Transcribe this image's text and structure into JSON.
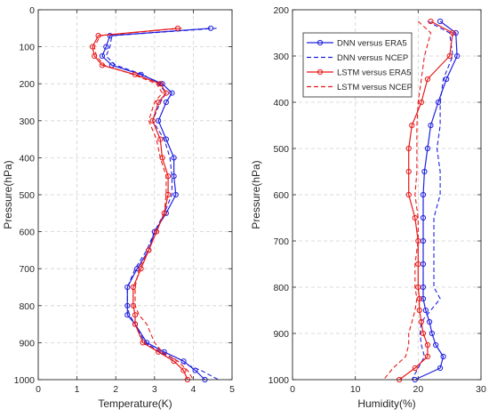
{
  "chart_data": [
    {
      "type": "line",
      "xlabel": "Temperature(K)",
      "ylabel": "Pressure(hPa)",
      "xlim": [
        0,
        5
      ],
      "ylim": [
        1000,
        0
      ],
      "y_reversed": true,
      "xticks": [
        "0",
        "1",
        "2",
        "3",
        "4",
        "5"
      ],
      "yticks": [
        "0",
        "100",
        "200",
        "300",
        "400",
        "500",
        "600",
        "700",
        "800",
        "900",
        "1000"
      ],
      "grid": "dashed",
      "legend": "none",
      "series": [
        {
          "color": "#2020e0",
          "dash": "solid",
          "marker": "circle",
          "points": [
            [
              4.45,
              50
            ],
            [
              1.85,
              70
            ],
            [
              1.75,
              100
            ],
            [
              1.65,
              125
            ],
            [
              1.9,
              150
            ],
            [
              2.65,
              175
            ],
            [
              3.2,
              200
            ],
            [
              3.45,
              225
            ],
            [
              3.3,
              250
            ],
            [
              3.1,
              300
            ],
            [
              3.3,
              350
            ],
            [
              3.5,
              400
            ],
            [
              3.5,
              450
            ],
            [
              3.55,
              500
            ],
            [
              3.3,
              550
            ],
            [
              3.0,
              600
            ],
            [
              2.85,
              650
            ],
            [
              2.55,
              700
            ],
            [
              2.3,
              750
            ],
            [
              2.3,
              800
            ],
            [
              2.3,
              825
            ],
            [
              2.5,
              850
            ],
            [
              2.8,
              900
            ],
            [
              3.25,
              925
            ],
            [
              3.75,
              950
            ],
            [
              4.05,
              975
            ],
            [
              4.3,
              1000
            ]
          ]
        },
        {
          "color": "#2020e0",
          "dash": "dashed",
          "marker": "none",
          "points": [
            [
              4.6,
              50
            ],
            [
              1.9,
              70
            ],
            [
              1.85,
              100
            ],
            [
              1.75,
              125
            ],
            [
              2.0,
              150
            ],
            [
              2.7,
              175
            ],
            [
              3.1,
              200
            ],
            [
              3.3,
              225
            ],
            [
              3.15,
              250
            ],
            [
              2.95,
              300
            ],
            [
              3.25,
              350
            ],
            [
              3.4,
              400
            ],
            [
              3.45,
              450
            ],
            [
              3.45,
              500
            ],
            [
              3.25,
              550
            ],
            [
              3.0,
              600
            ],
            [
              2.8,
              650
            ],
            [
              2.5,
              700
            ],
            [
              2.3,
              750
            ],
            [
              2.3,
              800
            ],
            [
              2.35,
              825
            ],
            [
              2.5,
              850
            ],
            [
              2.75,
              900
            ],
            [
              3.15,
              925
            ],
            [
              3.6,
              950
            ],
            [
              4.2,
              975
            ],
            [
              4.65,
              1000
            ]
          ]
        },
        {
          "color": "#e81818",
          "dash": "solid",
          "marker": "circle",
          "points": [
            [
              3.6,
              50
            ],
            [
              1.55,
              70
            ],
            [
              1.4,
              100
            ],
            [
              1.45,
              125
            ],
            [
              1.65,
              150
            ],
            [
              2.5,
              175
            ],
            [
              3.15,
              200
            ],
            [
              3.3,
              225
            ],
            [
              3.1,
              250
            ],
            [
              2.95,
              300
            ],
            [
              3.15,
              350
            ],
            [
              3.2,
              400
            ],
            [
              3.35,
              450
            ],
            [
              3.35,
              500
            ],
            [
              3.25,
              550
            ],
            [
              3.05,
              600
            ],
            [
              2.85,
              650
            ],
            [
              2.65,
              700
            ],
            [
              2.45,
              750
            ],
            [
              2.45,
              800
            ],
            [
              2.5,
              825
            ],
            [
              2.5,
              850
            ],
            [
              2.7,
              900
            ],
            [
              3.1,
              925
            ],
            [
              3.5,
              950
            ],
            [
              3.75,
              975
            ],
            [
              3.85,
              1000
            ]
          ]
        },
        {
          "color": "#e81818",
          "dash": "dashed",
          "marker": "none",
          "points": [
            [
              3.7,
              50
            ],
            [
              1.6,
              70
            ],
            [
              1.45,
              100
            ],
            [
              1.5,
              125
            ],
            [
              1.7,
              150
            ],
            [
              2.45,
              175
            ],
            [
              3.05,
              200
            ],
            [
              3.2,
              225
            ],
            [
              3.0,
              250
            ],
            [
              2.85,
              300
            ],
            [
              3.05,
              350
            ],
            [
              3.15,
              400
            ],
            [
              3.3,
              450
            ],
            [
              3.3,
              500
            ],
            [
              3.25,
              550
            ],
            [
              3.05,
              600
            ],
            [
              2.85,
              650
            ],
            [
              2.6,
              700
            ],
            [
              2.5,
              750
            ],
            [
              2.5,
              800
            ],
            [
              2.6,
              825
            ],
            [
              2.8,
              850
            ],
            [
              3.0,
              900
            ],
            [
              3.2,
              925
            ],
            [
              3.6,
              950
            ],
            [
              3.85,
              975
            ],
            [
              4.0,
              1000
            ]
          ]
        }
      ]
    },
    {
      "type": "line",
      "xlabel": "Humidity(%)",
      "ylabel": "Pressure(hPa)",
      "xlim": [
        0,
        30
      ],
      "ylim": [
        1000,
        200
      ],
      "y_reversed": true,
      "xticks": [
        "0",
        "10",
        "20",
        "30"
      ],
      "yticks": [
        "200",
        "300",
        "400",
        "500",
        "600",
        "700",
        "800",
        "900",
        "1000"
      ],
      "grid": "dashed",
      "legend": "top-left",
      "series": [
        {
          "name": "DNN versus ERA5",
          "color": "#2020e0",
          "dash": "solid",
          "marker": "circle",
          "points": [
            [
              23.5,
              225
            ],
            [
              26.0,
              250
            ],
            [
              26.2,
              300
            ],
            [
              24.5,
              350
            ],
            [
              23.2,
              400
            ],
            [
              22.0,
              450
            ],
            [
              21.5,
              500
            ],
            [
              21.0,
              550
            ],
            [
              20.8,
              600
            ],
            [
              20.8,
              650
            ],
            [
              20.8,
              700
            ],
            [
              20.8,
              750
            ],
            [
              20.8,
              800
            ],
            [
              20.8,
              825
            ],
            [
              21.2,
              850
            ],
            [
              21.8,
              875
            ],
            [
              22.2,
              900
            ],
            [
              22.8,
              925
            ],
            [
              24.0,
              950
            ],
            [
              23.5,
              975
            ],
            [
              19.5,
              1000
            ]
          ]
        },
        {
          "name": "DNN versus NCEP",
          "color": "#2020e0",
          "dash": "dashed",
          "marker": "none",
          "points": [
            [
              21.5,
              225
            ],
            [
              25.0,
              250
            ],
            [
              25.5,
              300
            ],
            [
              24.0,
              350
            ],
            [
              23.5,
              400
            ],
            [
              23.5,
              450
            ],
            [
              23.0,
              500
            ],
            [
              23.5,
              550
            ],
            [
              23.5,
              600
            ],
            [
              22.5,
              650
            ],
            [
              22.5,
              700
            ],
            [
              22.5,
              750
            ],
            [
              22.5,
              800
            ],
            [
              23.5,
              825
            ],
            [
              22.0,
              850
            ],
            [
              20.5,
              875
            ],
            [
              20.3,
              900
            ],
            [
              20.5,
              925
            ],
            [
              21.0,
              950
            ],
            [
              20.0,
              975
            ],
            [
              19.0,
              1000
            ]
          ]
        },
        {
          "name": "LSTM versus ERA5",
          "color": "#e81818",
          "dash": "solid",
          "marker": "circle",
          "points": [
            [
              22.0,
              225
            ],
            [
              25.5,
              250
            ],
            [
              25.0,
              300
            ],
            [
              21.5,
              350
            ],
            [
              20.5,
              400
            ],
            [
              19.0,
              450
            ],
            [
              18.5,
              500
            ],
            [
              18.5,
              550
            ],
            [
              18.5,
              600
            ],
            [
              19.5,
              650
            ],
            [
              20.0,
              700
            ],
            [
              20.0,
              750
            ],
            [
              20.0,
              800
            ],
            [
              20.2,
              825
            ],
            [
              20.2,
              850
            ],
            [
              20.5,
              875
            ],
            [
              20.8,
              900
            ],
            [
              21.5,
              925
            ],
            [
              21.5,
              950
            ],
            [
              19.5,
              975
            ],
            [
              17.0,
              1000
            ]
          ]
        },
        {
          "name": "LSTM versus NCEP",
          "color": "#e81818",
          "dash": "dashed",
          "marker": "none",
          "points": [
            [
              20.0,
              225
            ],
            [
              22.0,
              250
            ],
            [
              21.0,
              300
            ],
            [
              20.5,
              350
            ],
            [
              20.0,
              400
            ],
            [
              19.8,
              450
            ],
            [
              19.8,
              500
            ],
            [
              19.8,
              550
            ],
            [
              19.5,
              600
            ],
            [
              20.0,
              650
            ],
            [
              20.0,
              700
            ],
            [
              19.5,
              750
            ],
            [
              19.5,
              800
            ],
            [
              19.8,
              825
            ],
            [
              19.5,
              850
            ],
            [
              19.0,
              875
            ],
            [
              18.5,
              900
            ],
            [
              18.5,
              925
            ],
            [
              18.0,
              950
            ],
            [
              16.0,
              975
            ],
            [
              14.5,
              1000
            ]
          ]
        }
      ]
    }
  ]
}
